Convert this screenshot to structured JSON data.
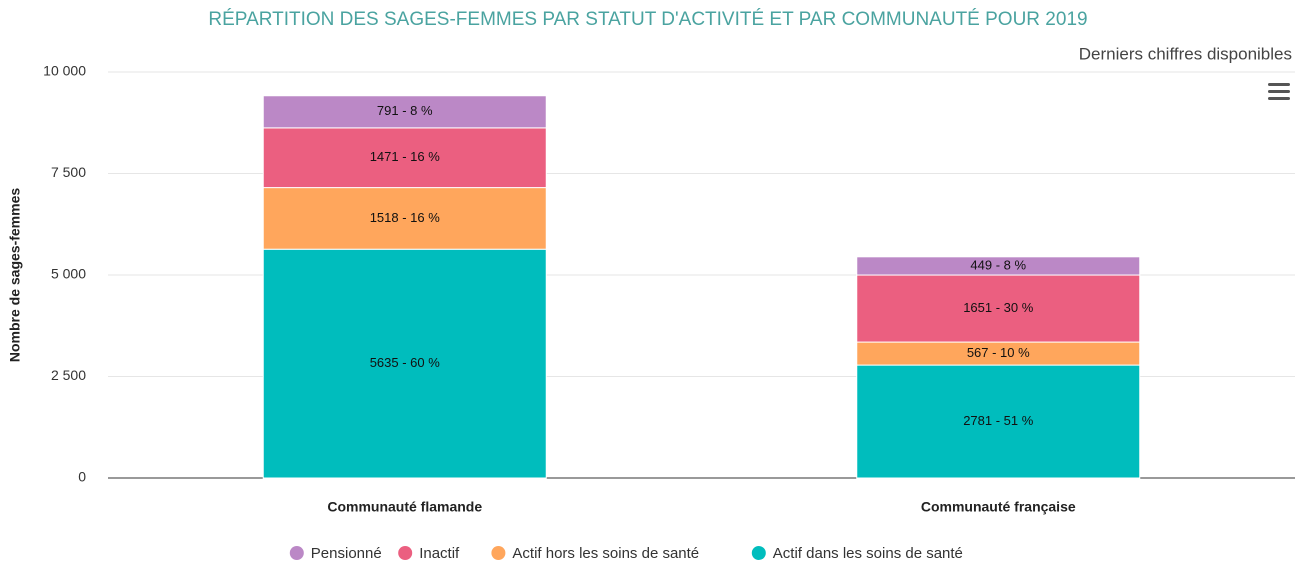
{
  "chart_data": {
    "type": "bar",
    "stacked": true,
    "title": "RÉPARTITION DES SAGES-FEMMES PAR STATUT D'ACTIVITÉ ET PAR COMMUNAUTÉ POUR 2019",
    "subtitle": "Derniers chiffres disponibles",
    "y_label": "Nombre de sages-femmes",
    "categories": [
      "Communauté flamande",
      "Communauté française"
    ],
    "series": [
      {
        "name": "Pensionné",
        "color": "#bb88c6",
        "values": [
          791,
          449
        ],
        "value_labels": [
          "791 - 8 %",
          "449 - 8 %"
        ]
      },
      {
        "name": "Inactif",
        "color": "#eb5f80",
        "values": [
          1471,
          1651
        ],
        "value_labels": [
          "1471 - 16 %",
          "1651 - 30 %"
        ]
      },
      {
        "name": "Actif hors les soins de santé",
        "color": "#ffa65c",
        "values": [
          1518,
          567
        ],
        "value_labels": [
          "1518 - 16 %",
          "567 - 10 %"
        ]
      },
      {
        "name": "Actif dans les soins de santé",
        "color": "#00bdbd",
        "values": [
          5635,
          2781
        ],
        "value_labels": [
          "5635 - 60 %",
          "2781 - 51 %"
        ]
      }
    ],
    "ylim": [
      0,
      10000
    ],
    "yticks": [
      0,
      {
        "value": 2500,
        "label": "2 500"
      },
      {
        "value": 5000,
        "label": "5 000"
      },
      {
        "value": 7500,
        "label": "7 500"
      },
      {
        "value": 10000,
        "label": "10 000"
      }
    ],
    "grid": true,
    "legend": "bottom"
  }
}
